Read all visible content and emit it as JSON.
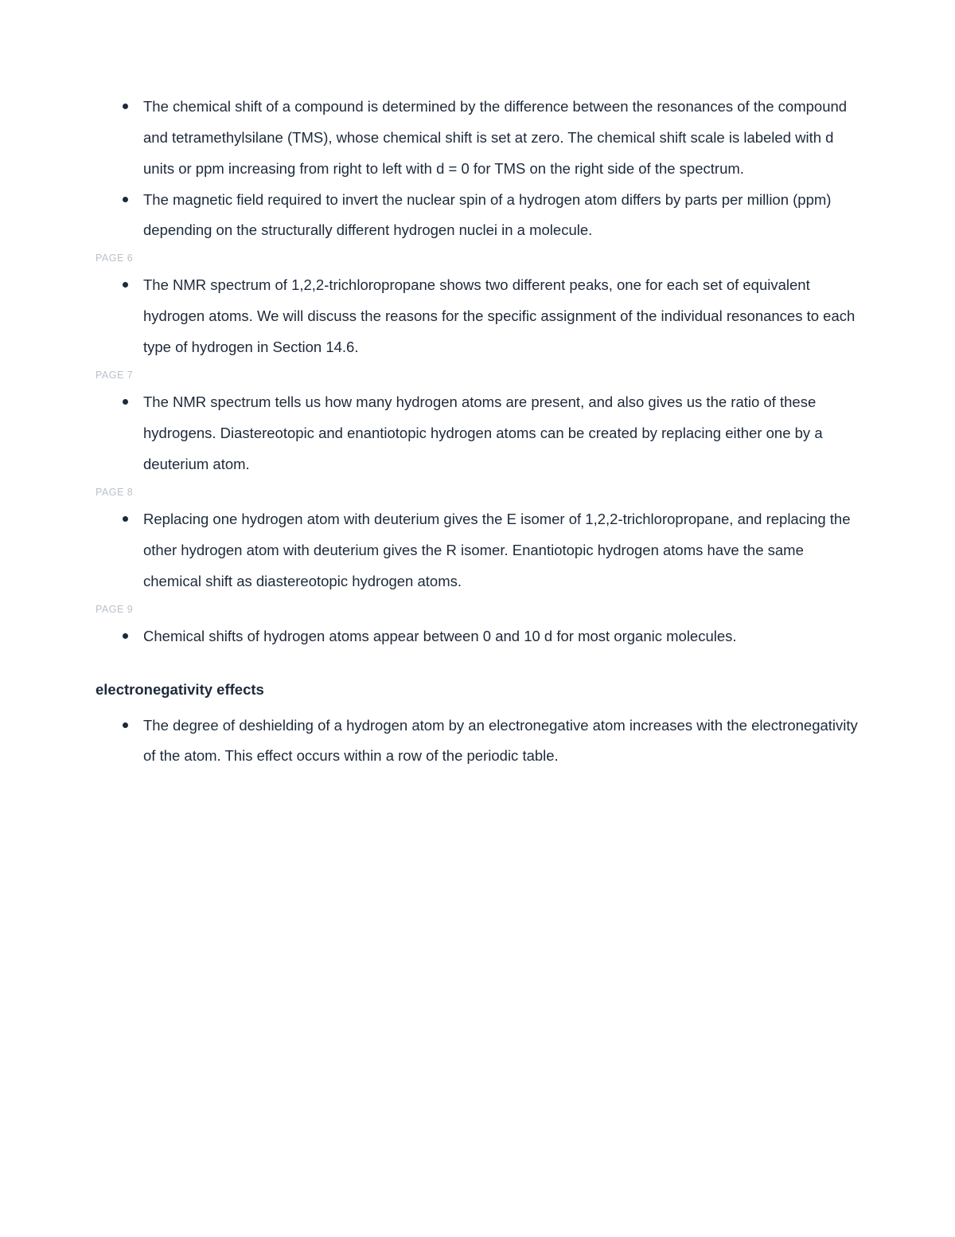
{
  "doc": {
    "text_color": "#1e2a3a",
    "marker_color": "#b9c0c9",
    "background_color": "#ffffff",
    "font_size_body": 18.5,
    "font_size_marker": 12.5,
    "line_height": 2.1
  },
  "blocks": [
    {
      "bullets": [
        "The chemical shift of a compound is determined by the difference between the resonances of the compound and tetramethylsilane (TMS), whose chemical shift is set at zero. The chemical shift scale is labeled with d units or ppm increasing from right to left with d = 0 for TMS on the right side of the spectrum.",
        "The magnetic field required to invert the nuclear spin of a hydrogen atom differs by parts per million (ppm) depending on the structurally different hydrogen nuclei in a molecule."
      ]
    },
    {
      "marker": "PAGE 6",
      "bullets": [
        "The NMR spectrum of 1,2,2-trichloropropane shows two different peaks, one for each set of equivalent hydrogen atoms. We will discuss the reasons for the specific assignment of the individual resonances to each type of hydrogen in Section 14.6."
      ]
    },
    {
      "marker": "PAGE 7",
      "bullets": [
        "The NMR spectrum tells us how many hydrogen atoms are present, and also gives us the ratio of these hydrogens. Diastereotopic and enantiotopic hydrogen atoms can be created by replacing either one by a deuterium atom."
      ]
    },
    {
      "marker": "PAGE 8",
      "bullets": [
        "Replacing one hydrogen atom with deuterium gives the E isomer of 1,2,2-trichloropropane, and replacing the other hydrogen atom with deuterium gives the R isomer. Enantiotopic hydrogen atoms have the same chemical shift as diastereotopic hydrogen atoms."
      ]
    },
    {
      "marker": "PAGE 9",
      "bullets": [
        "Chemical shifts of hydrogen atoms appear between 0 and 10 d for most organic molecules."
      ]
    }
  ],
  "heading": "electronegativity effects",
  "heading_bullets": [
    "The degree of deshielding of a hydrogen atom by an electronegative atom increases with the electronegativity of the atom. This effect occurs within a row of the periodic table."
  ]
}
